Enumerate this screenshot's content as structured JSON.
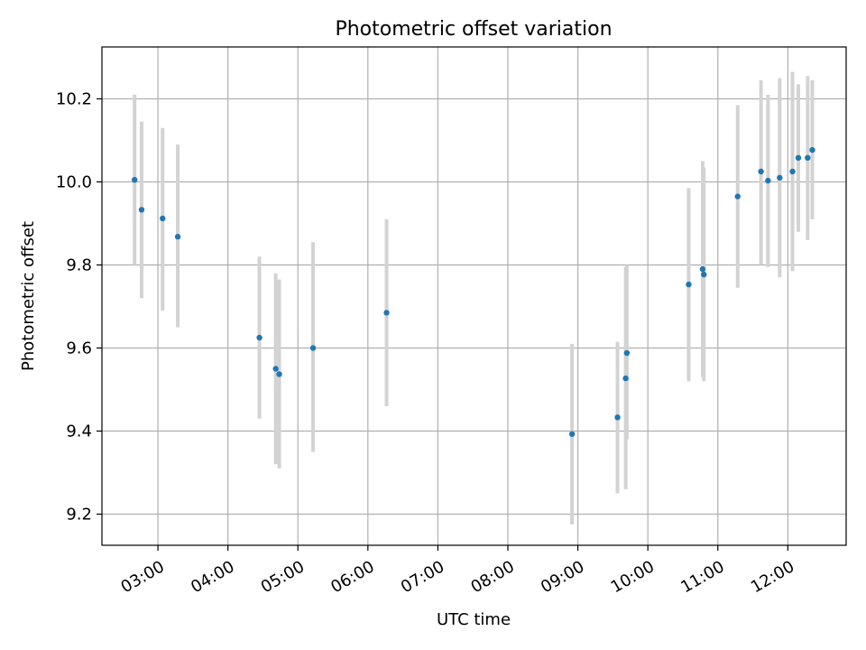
{
  "chart_data": {
    "type": "scatter",
    "title": "Photometric offset variation",
    "xlabel": "UTC time",
    "ylabel": "Photometric offset",
    "x_ticks": [
      "03:00",
      "04:00",
      "05:00",
      "06:00",
      "07:00",
      "08:00",
      "09:00",
      "10:00",
      "11:00",
      "12:00"
    ],
    "y_ticks": [
      "9.2",
      "9.4",
      "9.6",
      "9.8",
      "10.0",
      "10.2"
    ],
    "xlim": [
      "02:12",
      "12:50"
    ],
    "ylim": [
      9.125,
      10.325
    ],
    "grid": true,
    "colors": {
      "points": "#1f77b4",
      "errorbars": "#d3d3d3",
      "grid": "#b0b0b0"
    },
    "points": [
      {
        "x": "02:40",
        "y": 10.005,
        "yerr_low": 9.8,
        "yerr_high": 10.21
      },
      {
        "x": "02:46",
        "y": 9.933,
        "yerr_low": 9.72,
        "yerr_high": 10.145
      },
      {
        "x": "03:04",
        "y": 9.912,
        "yerr_low": 9.69,
        "yerr_high": 10.13
      },
      {
        "x": "03:17",
        "y": 9.868,
        "yerr_low": 9.65,
        "yerr_high": 10.09
      },
      {
        "x": "04:27",
        "y": 9.625,
        "yerr_low": 9.43,
        "yerr_high": 9.82
      },
      {
        "x": "04:41",
        "y": 9.55,
        "yerr_low": 9.32,
        "yerr_high": 9.78
      },
      {
        "x": "04:44",
        "y": 9.537,
        "yerr_low": 9.31,
        "yerr_high": 9.765
      },
      {
        "x": "05:13",
        "y": 9.6,
        "yerr_low": 9.35,
        "yerr_high": 9.855
      },
      {
        "x": "06:16",
        "y": 9.685,
        "yerr_low": 9.46,
        "yerr_high": 9.91
      },
      {
        "x": "08:55",
        "y": 9.393,
        "yerr_low": 9.175,
        "yerr_high": 9.61
      },
      {
        "x": "09:34",
        "y": 9.433,
        "yerr_low": 9.25,
        "yerr_high": 9.615
      },
      {
        "x": "09:41",
        "y": 9.527,
        "yerr_low": 9.26,
        "yerr_high": 9.795
      },
      {
        "x": "09:42",
        "y": 9.588,
        "yerr_low": 9.38,
        "yerr_high": 9.8
      },
      {
        "x": "10:35",
        "y": 9.753,
        "yerr_low": 9.52,
        "yerr_high": 9.985
      },
      {
        "x": "10:47",
        "y": 9.79,
        "yerr_low": 9.53,
        "yerr_high": 10.05
      },
      {
        "x": "10:48",
        "y": 9.777,
        "yerr_low": 9.52,
        "yerr_high": 10.035
      },
      {
        "x": "11:17",
        "y": 9.965,
        "yerr_low": 9.745,
        "yerr_high": 10.185
      },
      {
        "x": "11:37",
        "y": 10.025,
        "yerr_low": 9.8,
        "yerr_high": 10.245
      },
      {
        "x": "11:43",
        "y": 10.003,
        "yerr_low": 9.795,
        "yerr_high": 10.21
      },
      {
        "x": "11:53",
        "y": 10.01,
        "yerr_low": 9.77,
        "yerr_high": 10.25
      },
      {
        "x": "12:04",
        "y": 10.025,
        "yerr_low": 9.785,
        "yerr_high": 10.265
      },
      {
        "x": "12:09",
        "y": 10.058,
        "yerr_low": 9.88,
        "yerr_high": 10.235
      },
      {
        "x": "12:17",
        "y": 10.058,
        "yerr_low": 9.86,
        "yerr_high": 10.255
      },
      {
        "x": "12:21",
        "y": 10.077,
        "yerr_low": 9.91,
        "yerr_high": 10.245
      }
    ]
  }
}
